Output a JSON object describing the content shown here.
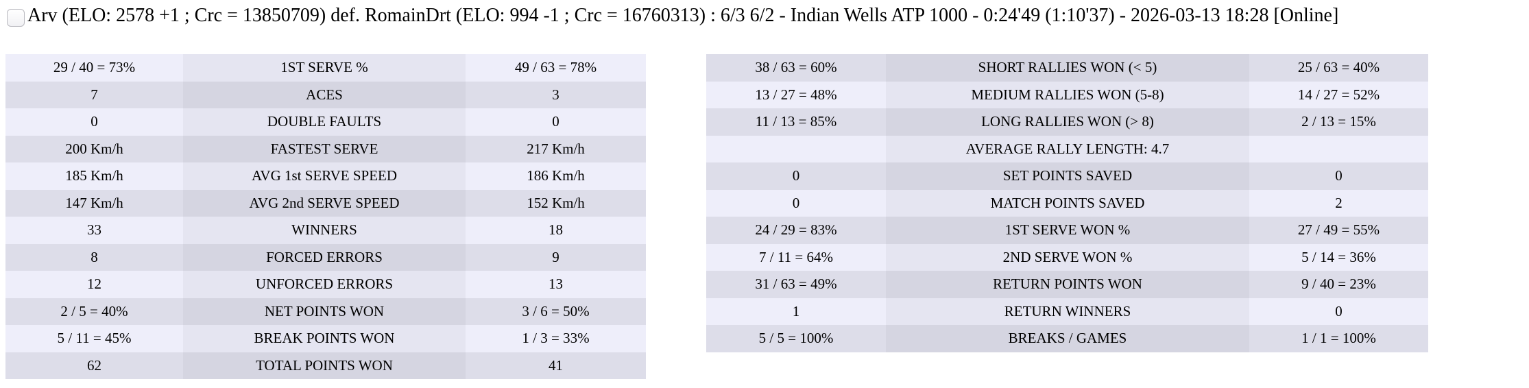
{
  "title": {
    "text": "Arv (ELO: 2578 +1 ; Crc = 13850709) def. RomainDrt (ELO: 994 -1 ; Crc = 16760313) : 6/3 6/2 - Indian Wells ATP 1000 - 0:24'49 (1:10'37) - 2026-03-13 18:28 [Online]",
    "checkbox_checked": false
  },
  "colors": {
    "background": "#ffffff",
    "text": "#000000",
    "row_light_side": "#eeeefa",
    "row_light_mid": "#e5e5f1",
    "row_dark_side": "#dddde9",
    "row_dark_mid": "#d5d5e1"
  },
  "left_table": {
    "rows": [
      {
        "p1": "29 / 40 = 73%",
        "label": "1ST SERVE %",
        "p2": "49 / 63 = 78%"
      },
      {
        "p1": "7",
        "label": "ACES",
        "p2": "3"
      },
      {
        "p1": "0",
        "label": "DOUBLE FAULTS",
        "p2": "0"
      },
      {
        "p1": "200 Km/h",
        "label": "FASTEST SERVE",
        "p2": "217 Km/h"
      },
      {
        "p1": "185 Km/h",
        "label": "AVG 1st SERVE SPEED",
        "p2": "186 Km/h"
      },
      {
        "p1": "147 Km/h",
        "label": "AVG 2nd SERVE SPEED",
        "p2": "152 Km/h"
      },
      {
        "p1": "33",
        "label": "WINNERS",
        "p2": "18"
      },
      {
        "p1": "8",
        "label": "FORCED ERRORS",
        "p2": "9"
      },
      {
        "p1": "12",
        "label": "UNFORCED ERRORS",
        "p2": "13"
      },
      {
        "p1": "2 / 5 = 40%",
        "label": "NET POINTS WON",
        "p2": "3 / 6 = 50%"
      },
      {
        "p1": "5 / 11 = 45%",
        "label": "BREAK POINTS WON",
        "p2": "1 / 3 = 33%"
      },
      {
        "p1": "62",
        "label": "TOTAL POINTS WON",
        "p2": "41"
      }
    ]
  },
  "right_table": {
    "rows": [
      {
        "p1": "38 / 63 = 60%",
        "label": "SHORT RALLIES WON (< 5)",
        "p2": "25 / 63 = 40%"
      },
      {
        "p1": "13 / 27 = 48%",
        "label": "MEDIUM RALLIES WON (5-8)",
        "p2": "14 / 27 = 52%"
      },
      {
        "p1": "11 / 13 = 85%",
        "label": "LONG RALLIES WON (> 8)",
        "p2": "2 / 13 = 15%"
      },
      {
        "p1": "",
        "label": "AVERAGE RALLY LENGTH: 4.7",
        "p2": ""
      },
      {
        "p1": "0",
        "label": "SET POINTS SAVED",
        "p2": "0"
      },
      {
        "p1": "0",
        "label": "MATCH POINTS SAVED",
        "p2": "2"
      },
      {
        "p1": "24 / 29 = 83%",
        "label": "1ST SERVE WON %",
        "p2": "27 / 49 = 55%"
      },
      {
        "p1": "7 / 11 = 64%",
        "label": "2ND SERVE WON %",
        "p2": "5 / 14 = 36%"
      },
      {
        "p1": "31 / 63 = 49%",
        "label": "RETURN POINTS WON",
        "p2": "9 / 40 = 23%"
      },
      {
        "p1": "1",
        "label": "RETURN WINNERS",
        "p2": "0"
      },
      {
        "p1": "5 / 5 = 100%",
        "label": "BREAKS / GAMES",
        "p2": "1 / 1 = 100%"
      }
    ]
  }
}
